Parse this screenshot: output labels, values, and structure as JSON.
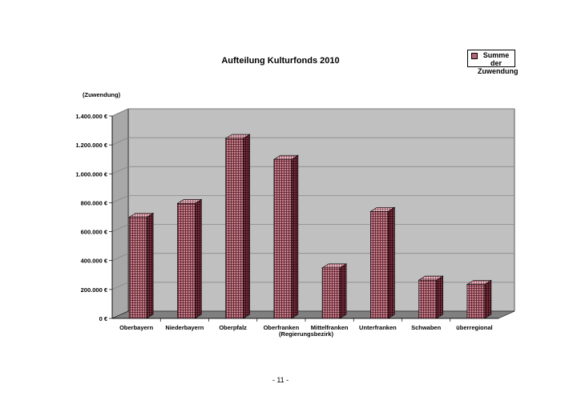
{
  "page": {
    "page_number": "- 11 -"
  },
  "chart_data": {
    "type": "bar",
    "title": "Aufteilung Kulturfonds 2010",
    "xlabel": "(Regierungsbezirk)",
    "ylabel": "(Zuwendung)",
    "categories": [
      "Oberbayern",
      "Niederbayern",
      "Oberpfalz",
      "Oberfranken",
      "Mittelfranken",
      "Unterfranken",
      "Schwaben",
      "überregional"
    ],
    "series": [
      {
        "name": "Summe der Zuwendung",
        "values": [
          700000,
          795000,
          1245000,
          1100000,
          350000,
          740000,
          265000,
          235000
        ]
      }
    ],
    "ylim": [
      0,
      1400000
    ],
    "y_ticks": [
      0,
      200000,
      400000,
      600000,
      800000,
      1000000,
      1200000,
      1400000
    ],
    "y_tick_labels": [
      "0 €",
      "200.000 €",
      "400.000 €",
      "600.000 €",
      "800.000 €",
      "1.000.000 €",
      "1.200.000 €",
      "1.400.000 €"
    ],
    "legend": {
      "position": "top-right",
      "lines": [
        "Summe der",
        "Zuwendung"
      ]
    },
    "grid": true,
    "colors": {
      "bar": "#b56573",
      "wall": "#c0c0c0",
      "floor": "#808080",
      "grid": "#808080"
    }
  }
}
